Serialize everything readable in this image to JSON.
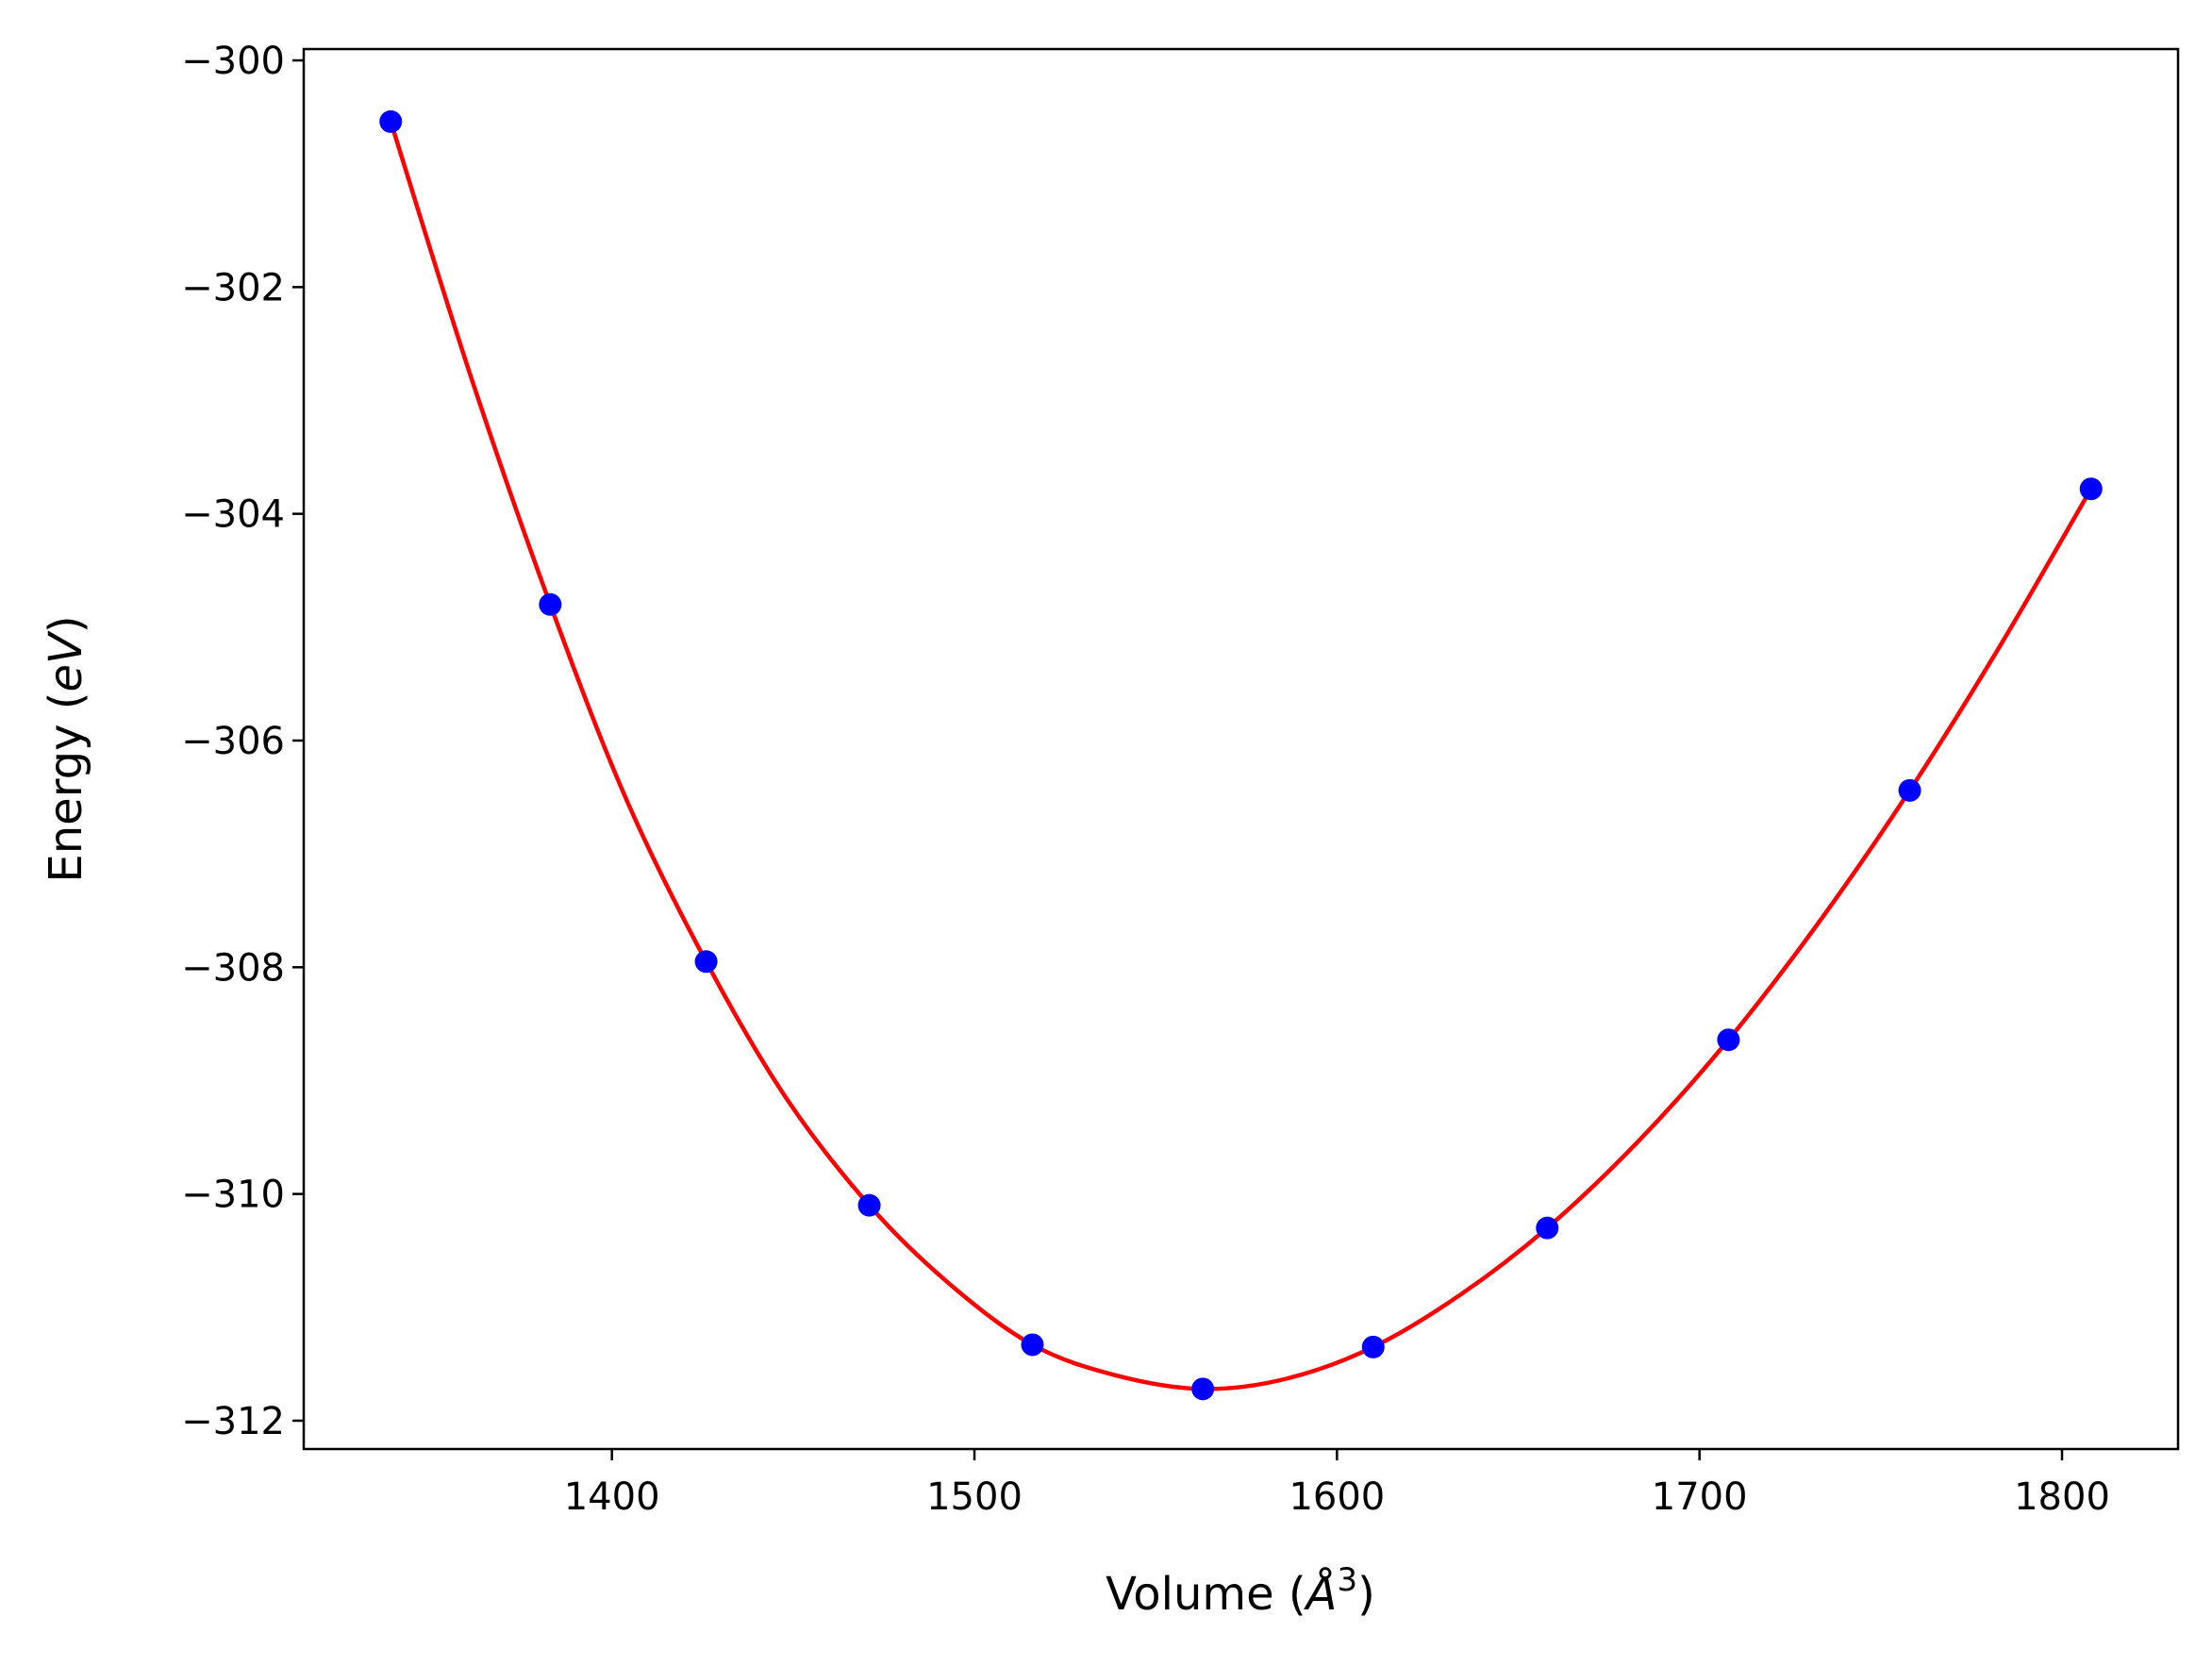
{
  "chart_data": {
    "type": "scatter",
    "title": "",
    "xlabel": {
      "prefix": "Volume (",
      "symbol": "Å",
      "superscript": "3",
      "suffix": ")"
    },
    "ylabel": {
      "prefix": "Energy (",
      "symbol": "eV",
      "suffix": ")"
    },
    "xlim": [
      1315,
      1832
    ],
    "ylim": [
      -312.25,
      -299.9
    ],
    "xticks": [
      1400,
      1500,
      1600,
      1700,
      1800
    ],
    "xtick_labels": [
      "1400",
      "1500",
      "1600",
      "1700",
      "1800"
    ],
    "yticks": [
      -300,
      -302,
      -304,
      -306,
      -308,
      -310,
      -312
    ],
    "ytick_labels": [
      "−300",
      "−302",
      "−304",
      "−306",
      "−308",
      "−310",
      "−312"
    ],
    "grid": false,
    "legend": false,
    "series": [
      {
        "kind": "points",
        "color": "#0000ff",
        "x": [
          1339,
          1383,
          1426,
          1471,
          1516,
          1563,
          1610,
          1658,
          1708,
          1758,
          1808
        ],
        "y": [
          -300.54,
          -304.8,
          -307.95,
          -310.1,
          -311.33,
          -311.72,
          -311.35,
          -310.3,
          -308.64,
          -306.44,
          -303.78
        ]
      },
      {
        "kind": "fit-curve",
        "color": "#ff0000",
        "x": [
          1339,
          1361,
          1383,
          1404,
          1426,
          1448,
          1471,
          1493,
          1516,
          1539,
          1563,
          1586,
          1610,
          1634,
          1658,
          1683,
          1708,
          1733,
          1758,
          1783,
          1808
        ],
        "y": [
          -300.54,
          -302.78,
          -304.8,
          -306.52,
          -307.95,
          -309.15,
          -310.1,
          -310.79,
          -311.33,
          -311.6,
          -311.72,
          -311.63,
          -311.35,
          -310.89,
          -310.3,
          -309.54,
          -308.64,
          -307.6,
          -306.44,
          -305.16,
          -303.78
        ]
      }
    ]
  }
}
